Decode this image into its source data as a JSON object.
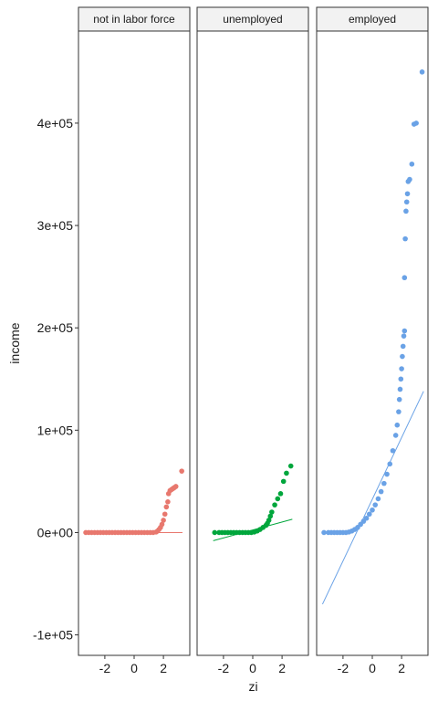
{
  "chart_data": {
    "type": "scatter",
    "title": "",
    "xlabel": "zi",
    "ylabel": "income",
    "xlim": [
      -3.8,
      3.8
    ],
    "ylim": [
      -120000,
      490000
    ],
    "x_ticks": [
      -2,
      0,
      2
    ],
    "x_tick_labels": [
      "-2",
      "0",
      "2"
    ],
    "y_ticks": [
      -100000,
      0,
      100000,
      200000,
      300000,
      400000
    ],
    "y_tick_labels": [
      "-1e+05",
      "0e+00",
      "1e+05",
      "2e+05",
      "3e+05",
      "4e+05"
    ],
    "grid": false,
    "legend": "none",
    "panels": [
      {
        "label": "not in labor force",
        "color": "#e8786e",
        "line": {
          "x": [
            -3.4,
            3.3
          ],
          "y": [
            0,
            0
          ]
        },
        "points": [
          [
            -3.3,
            0
          ],
          [
            -3.1,
            0
          ],
          [
            -2.9,
            0
          ],
          [
            -2.7,
            0
          ],
          [
            -2.5,
            0
          ],
          [
            -2.3,
            0
          ],
          [
            -2.1,
            0
          ],
          [
            -1.9,
            0
          ],
          [
            -1.7,
            0
          ],
          [
            -1.5,
            0
          ],
          [
            -1.3,
            0
          ],
          [
            -1.1,
            0
          ],
          [
            -0.9,
            0
          ],
          [
            -0.7,
            0
          ],
          [
            -0.5,
            0
          ],
          [
            -0.3,
            0
          ],
          [
            -0.1,
            0
          ],
          [
            0.1,
            0
          ],
          [
            0.3,
            0
          ],
          [
            0.5,
            0
          ],
          [
            0.7,
            0
          ],
          [
            0.9,
            0
          ],
          [
            1.1,
            0
          ],
          [
            1.3,
            0
          ],
          [
            1.5,
            500
          ],
          [
            1.6,
            1500
          ],
          [
            1.7,
            3000
          ],
          [
            1.8,
            5000
          ],
          [
            1.9,
            8000
          ],
          [
            2.0,
            12000
          ],
          [
            2.1,
            18000
          ],
          [
            2.2,
            25000
          ],
          [
            2.3,
            30000
          ],
          [
            2.35,
            38000
          ],
          [
            2.45,
            41000
          ],
          [
            2.55,
            42000
          ],
          [
            2.65,
            43000
          ],
          [
            2.75,
            44000
          ],
          [
            2.85,
            45000
          ],
          [
            3.25,
            60000
          ]
        ]
      },
      {
        "label": "unemployed",
        "color": "#00a63c",
        "line": {
          "x": [
            -2.7,
            2.7
          ],
          "y": [
            -8000,
            13000
          ]
        },
        "points": [
          [
            -2.6,
            0
          ],
          [
            -2.3,
            0
          ],
          [
            -2.1,
            0
          ],
          [
            -1.9,
            0
          ],
          [
            -1.7,
            0
          ],
          [
            -1.5,
            0
          ],
          [
            -1.3,
            0
          ],
          [
            -1.1,
            0
          ],
          [
            -0.9,
            0
          ],
          [
            -0.7,
            0
          ],
          [
            -0.5,
            0
          ],
          [
            -0.3,
            0
          ],
          [
            -0.1,
            0
          ],
          [
            0.1,
            500
          ],
          [
            0.3,
            1500
          ],
          [
            0.5,
            3000
          ],
          [
            0.7,
            5000
          ],
          [
            0.9,
            7000
          ],
          [
            1.0,
            9000
          ],
          [
            1.1,
            12000
          ],
          [
            1.2,
            16000
          ],
          [
            1.3,
            20000
          ],
          [
            1.5,
            27000
          ],
          [
            1.7,
            33000
          ],
          [
            1.9,
            38000
          ],
          [
            2.1,
            50000
          ],
          [
            2.3,
            58000
          ],
          [
            2.6,
            65000
          ]
        ]
      },
      {
        "label": "employed",
        "color": "#6aa2e6",
        "line": {
          "x": [
            -3.4,
            3.5
          ],
          "y": [
            -70000,
            138000
          ]
        },
        "points": [
          [
            -3.3,
            0
          ],
          [
            -3.0,
            0
          ],
          [
            -2.8,
            0
          ],
          [
            -2.6,
            0
          ],
          [
            -2.4,
            0
          ],
          [
            -2.2,
            0
          ],
          [
            -2.0,
            0
          ],
          [
            -1.8,
            0
          ],
          [
            -1.6,
            500
          ],
          [
            -1.4,
            1500
          ],
          [
            -1.2,
            3000
          ],
          [
            -1.0,
            5000
          ],
          [
            -0.8,
            8000
          ],
          [
            -0.6,
            11000
          ],
          [
            -0.4,
            14000
          ],
          [
            -0.2,
            18000
          ],
          [
            0.0,
            22000
          ],
          [
            0.2,
            27000
          ],
          [
            0.4,
            33000
          ],
          [
            0.6,
            40000
          ],
          [
            0.8,
            48000
          ],
          [
            1.0,
            57000
          ],
          [
            1.2,
            67000
          ],
          [
            1.4,
            80000
          ],
          [
            1.6,
            95000
          ],
          [
            1.7,
            105000
          ],
          [
            1.8,
            118000
          ],
          [
            1.85,
            130000
          ],
          [
            1.9,
            140000
          ],
          [
            1.95,
            150000
          ],
          [
            2.0,
            160000
          ],
          [
            2.05,
            172000
          ],
          [
            2.1,
            182000
          ],
          [
            2.15,
            192000
          ],
          [
            2.2,
            197000
          ],
          [
            2.2,
            249000
          ],
          [
            2.25,
            287000
          ],
          [
            2.3,
            314000
          ],
          [
            2.35,
            323000
          ],
          [
            2.4,
            331000
          ],
          [
            2.45,
            343000
          ],
          [
            2.55,
            345000
          ],
          [
            2.7,
            360000
          ],
          [
            2.85,
            399000
          ],
          [
            3.0,
            400000
          ],
          [
            3.4,
            450000
          ]
        ]
      }
    ]
  }
}
